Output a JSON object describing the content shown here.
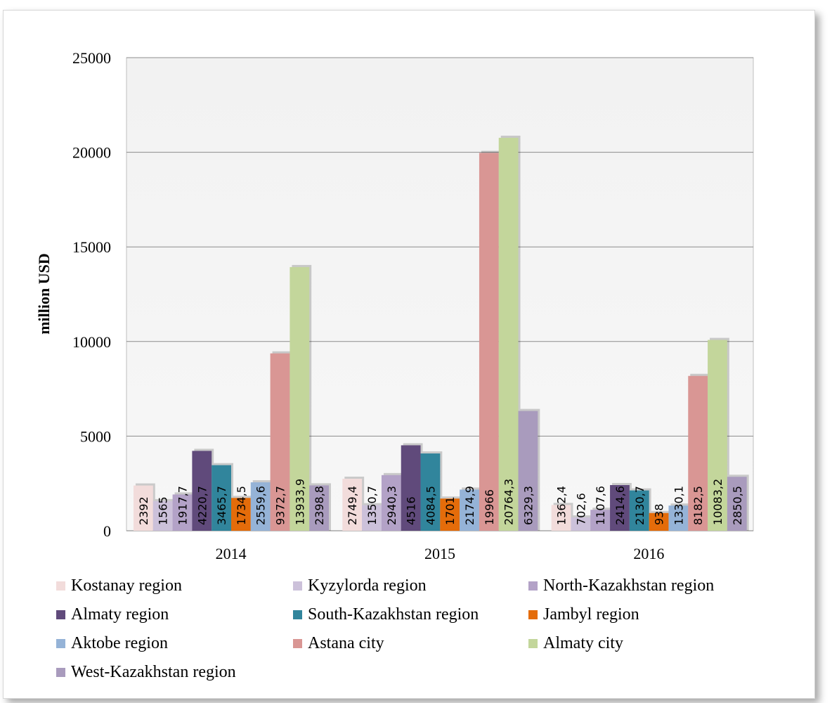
{
  "chart_data": {
    "type": "bar",
    "ylabel": "million USD",
    "xlabel": "",
    "ylim": [
      0,
      25000
    ],
    "yticks": [
      "0",
      "5000",
      "10000",
      "15000",
      "20000",
      "25000"
    ],
    "categories": [
      "2014",
      "2015",
      "2016"
    ],
    "grid": true,
    "legend_position": "bottom",
    "series": [
      {
        "name": "Kostanay region",
        "color": "#f2dcdb",
        "values": [
          2392,
          2749.4,
          1362.4
        ],
        "labels": [
          "2392",
          "2749,4",
          "1362,4"
        ]
      },
      {
        "name": "Kyzylorda region",
        "color": "#ccc1da",
        "values": [
          1565,
          1350.7,
          702.6
        ],
        "labels": [
          "1565",
          "1350,7",
          "702,6"
        ]
      },
      {
        "name": "North-Kazakhstan region",
        "color": "#b3a2c7",
        "values": [
          1917.7,
          2940.3,
          1107.6
        ],
        "labels": [
          "1917,7",
          "2940,3",
          "1107,6"
        ]
      },
      {
        "name": "Almaty region",
        "color": "#604a7b",
        "values": [
          4220.7,
          4516,
          2414.6
        ],
        "labels": [
          "4220,7",
          "4516",
          "2414,6"
        ]
      },
      {
        "name": "South-Kazakhstan region",
        "color": "#31859c",
        "values": [
          3465.7,
          4084.5,
          2130.7
        ],
        "labels": [
          "3465,7",
          "4084,5",
          "2130,7"
        ]
      },
      {
        "name": "Jambyl region",
        "color": "#e46c0a",
        "values": [
          1734.5,
          1701,
          938
        ],
        "labels": [
          "1734,5",
          "1701",
          "938"
        ]
      },
      {
        "name": "Aktobe region",
        "color": "#95b3d7",
        "values": [
          2559.6,
          2174.9,
          1330.1
        ],
        "labels": [
          "2559,6",
          "2174,9",
          "1330,1"
        ]
      },
      {
        "name": "Astana city",
        "color": "#d99694",
        "values": [
          9372.7,
          19966,
          8182.5
        ],
        "labels": [
          "9372,7",
          "19966",
          "8182,5"
        ]
      },
      {
        "name": "Almaty city",
        "color": "#c3d69b",
        "values": [
          13933.9,
          20764.3,
          10083.2
        ],
        "labels": [
          "13933,9",
          "20764,3",
          "10083,2"
        ]
      },
      {
        "name": "West-Kazakhstan region",
        "color": "#a99bbd",
        "values": [
          2398.8,
          6329.3,
          2850.5
        ],
        "labels": [
          "2398,8",
          "6329,3",
          "2850,5"
        ]
      }
    ]
  }
}
